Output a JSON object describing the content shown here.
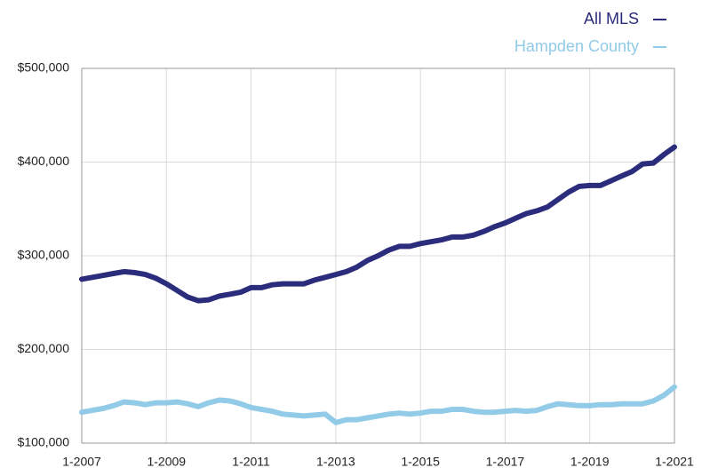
{
  "chart_data": {
    "type": "line",
    "categories": [
      "1-2007",
      null,
      null,
      null,
      null,
      null,
      null,
      null,
      "1-2009",
      null,
      null,
      null,
      null,
      null,
      null,
      null,
      "1-2011",
      null,
      null,
      null,
      null,
      null,
      null,
      null,
      "1-2013",
      null,
      null,
      null,
      null,
      null,
      null,
      null,
      "1-2015",
      null,
      null,
      null,
      null,
      null,
      null,
      null,
      "1-2017",
      null,
      null,
      null,
      null,
      null,
      null,
      null,
      "1-2019",
      null,
      null,
      null,
      null,
      null,
      null,
      null,
      "1-2021"
    ],
    "series": [
      {
        "name": "All MLS",
        "color": "#2b2d7c",
        "values": [
          275000,
          277000,
          279000,
          281000,
          283000,
          282000,
          280000,
          276000,
          270000,
          263000,
          256000,
          252000,
          253000,
          257000,
          259000,
          261000,
          266000,
          266000,
          269000,
          270000,
          270000,
          270000,
          274000,
          277000,
          280000,
          283000,
          288000,
          295000,
          300000,
          306000,
          310000,
          310000,
          313000,
          315000,
          317000,
          320000,
          320000,
          322000,
          326000,
          331000,
          335000,
          340000,
          345000,
          348000,
          352000,
          360000,
          368000,
          374000,
          375000,
          375000,
          380000,
          385000,
          390000,
          398000,
          399000,
          408000,
          416000
        ]
      },
      {
        "name": "Hampden County",
        "color": "#92cbe8",
        "values": [
          133000,
          135000,
          137000,
          140000,
          144000,
          143000,
          141000,
          143000,
          143000,
          144000,
          142000,
          139000,
          143000,
          146000,
          145000,
          142000,
          138000,
          136000,
          134000,
          131000,
          130000,
          129000,
          130000,
          131000,
          122000,
          125000,
          125000,
          127000,
          129000,
          131000,
          132000,
          131000,
          132000,
          134000,
          134000,
          136000,
          136000,
          134000,
          133000,
          133000,
          134000,
          135000,
          134000,
          135000,
          139000,
          142000,
          141000,
          140000,
          140000,
          141000,
          141000,
          142000,
          142000,
          142000,
          145000,
          151000,
          160000
        ]
      }
    ],
    "ylim": [
      100000,
      500000
    ],
    "yticks": [
      {
        "value": 100000,
        "label": "$100,000"
      },
      {
        "value": 200000,
        "label": "$200,000"
      },
      {
        "value": 300000,
        "label": "$300,000"
      },
      {
        "value": 400000,
        "label": "$400,000"
      },
      {
        "value": 500000,
        "label": "$500,000"
      }
    ],
    "grid": true,
    "legend": "top-right"
  }
}
